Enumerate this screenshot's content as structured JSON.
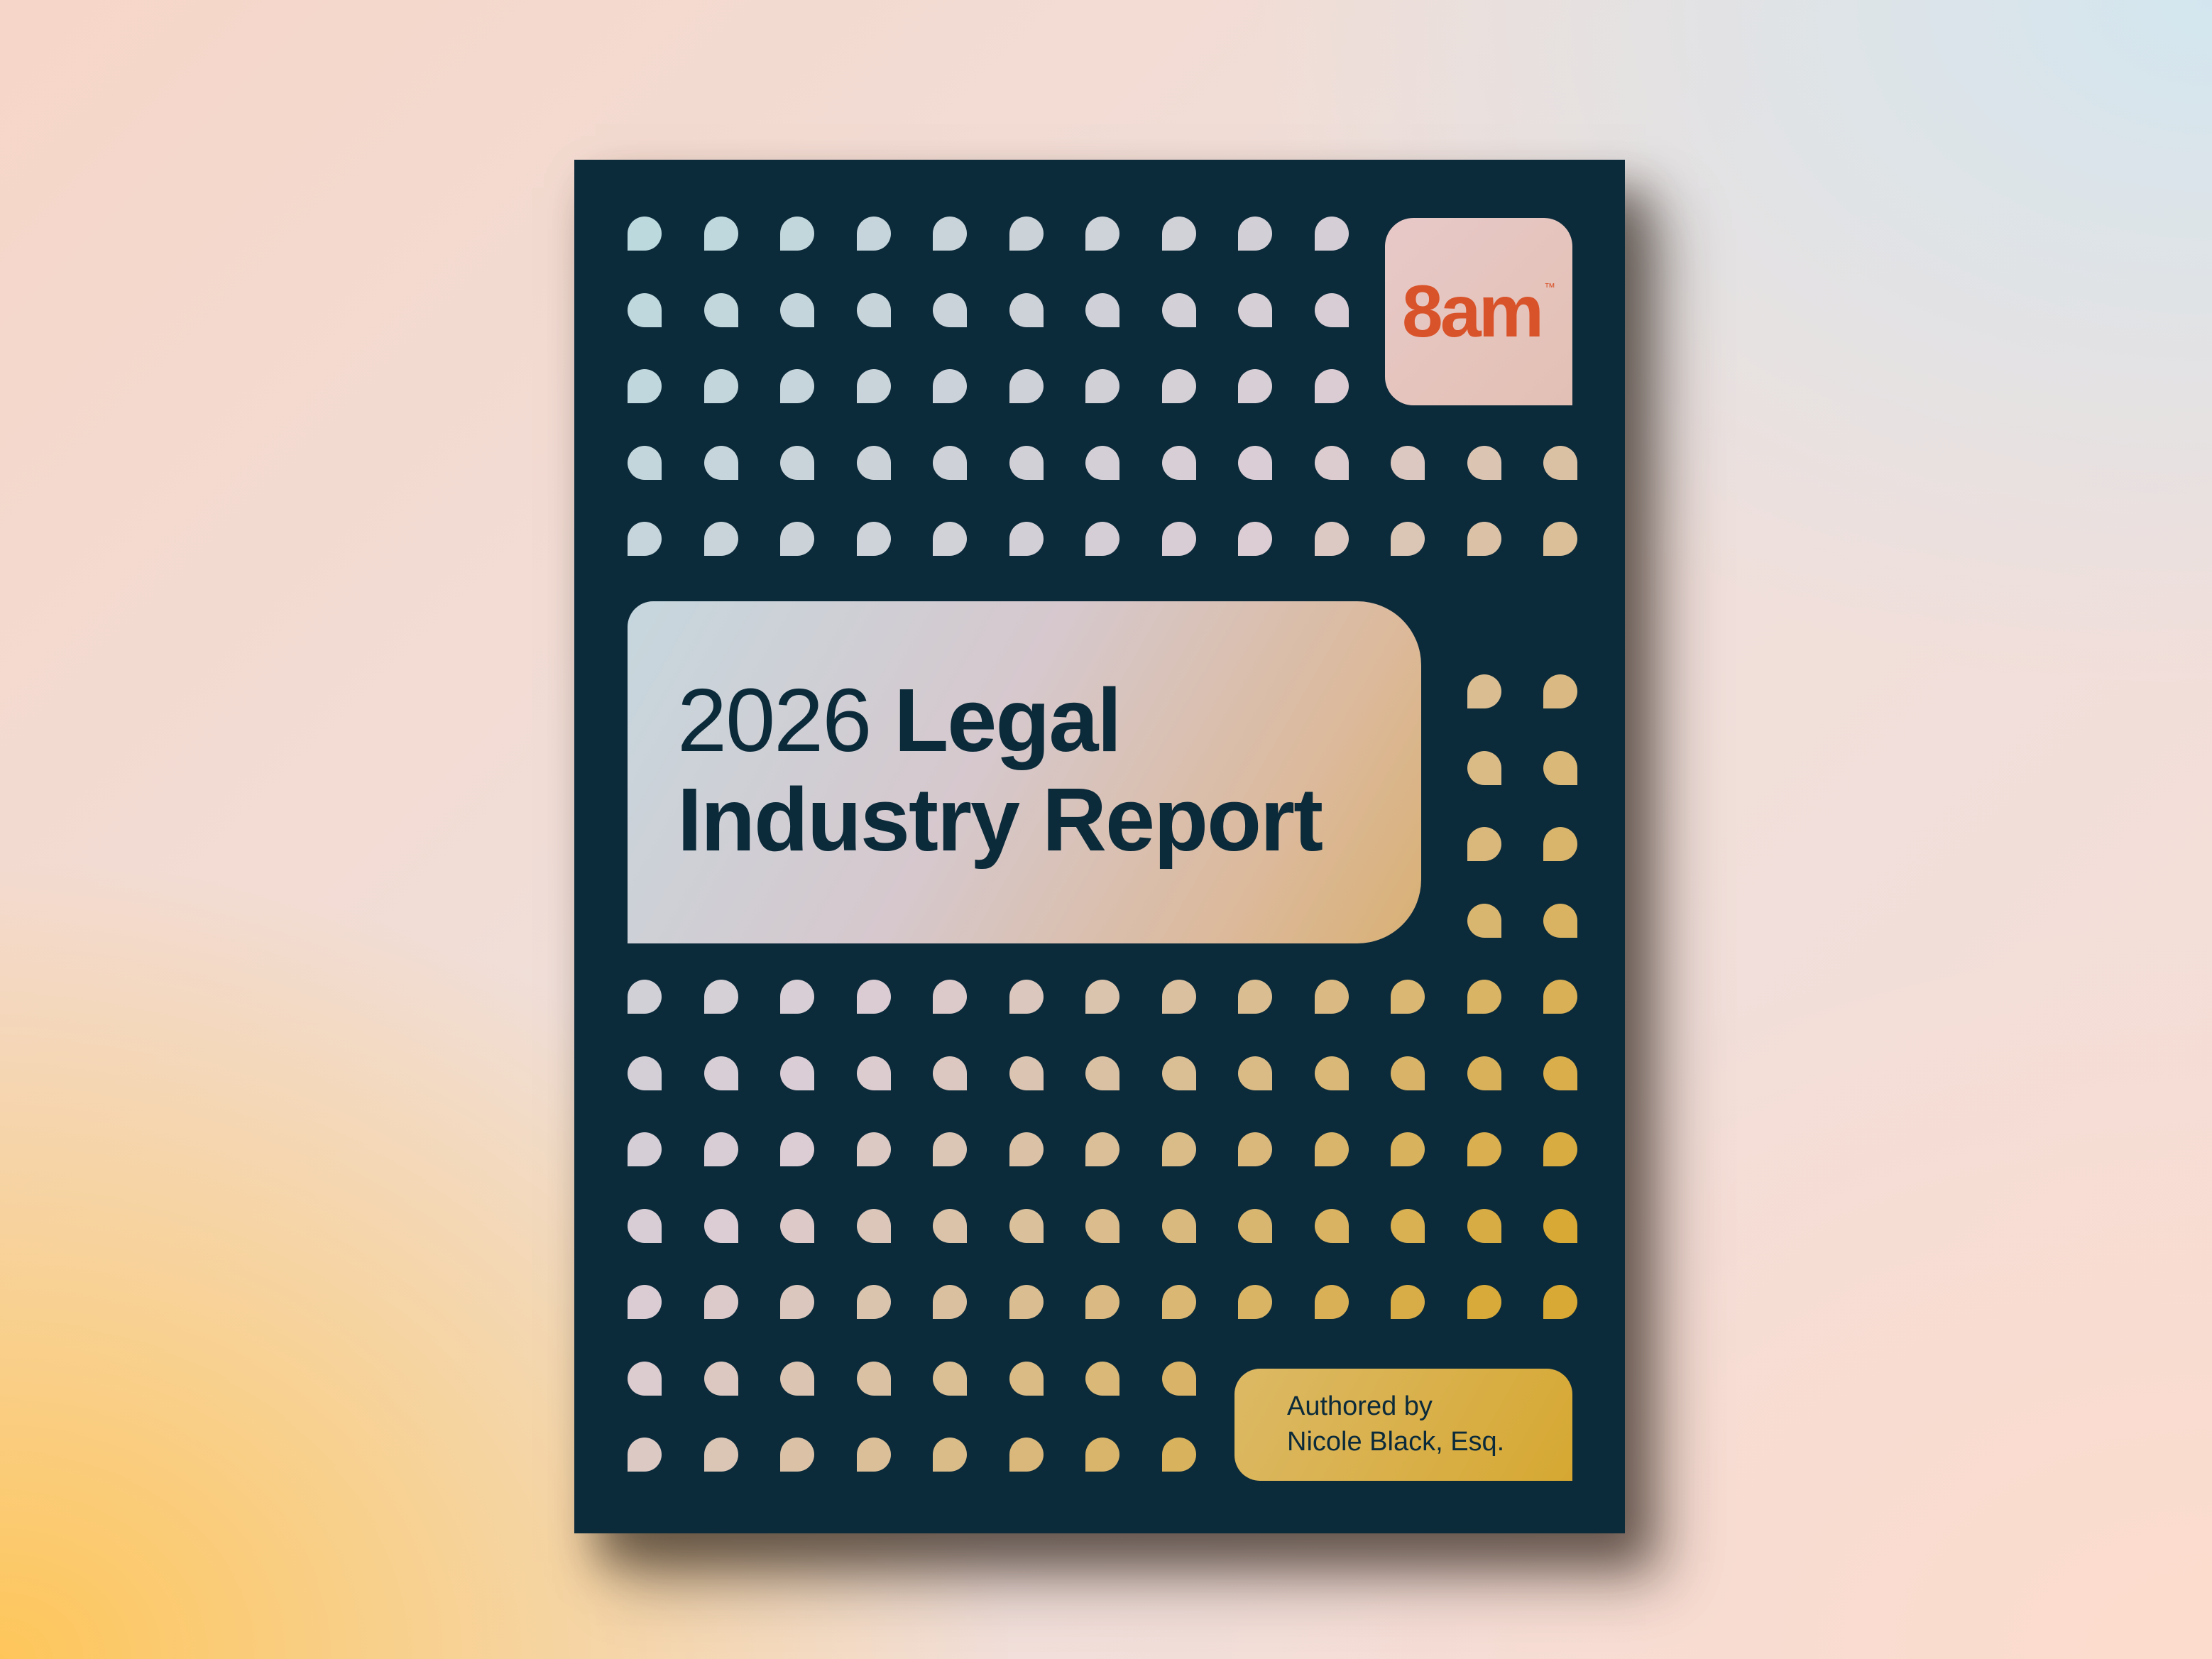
{
  "logo": {
    "text": "8am",
    "tm": "™",
    "color": "#d9532a"
  },
  "title": {
    "year": "2026",
    "bold_line1": "Legal",
    "bold_line2": "Industry Report"
  },
  "author": {
    "line1": "Authored by",
    "line2": "Nicole Black, Esq."
  },
  "colors": {
    "cover": "#0b2a3a",
    "dot_start": "#bcd9de",
    "dot_mid": "#dcccd4",
    "dot_end": "#d8a934"
  }
}
